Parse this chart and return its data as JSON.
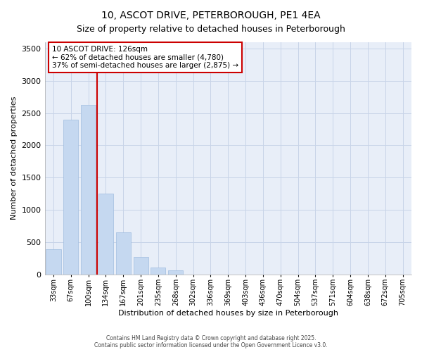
{
  "title1": "10, ASCOT DRIVE, PETERBOROUGH, PE1 4EA",
  "title2": "Size of property relative to detached houses in Peterborough",
  "xlabel": "Distribution of detached houses by size in Peterborough",
  "ylabel": "Number of detached properties",
  "categories": [
    "33sqm",
    "67sqm",
    "100sqm",
    "134sqm",
    "167sqm",
    "201sqm",
    "235sqm",
    "268sqm",
    "302sqm",
    "336sqm",
    "369sqm",
    "403sqm",
    "436sqm",
    "470sqm",
    "504sqm",
    "537sqm",
    "571sqm",
    "604sqm",
    "638sqm",
    "672sqm",
    "705sqm"
  ],
  "values": [
    390,
    2400,
    2630,
    1250,
    650,
    270,
    105,
    55,
    0,
    0,
    0,
    0,
    0,
    0,
    0,
    0,
    0,
    0,
    0,
    0,
    0
  ],
  "bar_color": "#c5d8f0",
  "bar_edge_color": "#a0bde0",
  "vline_position": 2.5,
  "vline_color": "#cc0000",
  "ylim_max": 3600,
  "yticks": [
    0,
    500,
    1000,
    1500,
    2000,
    2500,
    3000,
    3500
  ],
  "annotation_text": "10 ASCOT DRIVE: 126sqm\n← 62% of detached houses are smaller (4,780)\n37% of semi-detached houses are larger (2,875) →",
  "annotation_box_facecolor": "#ffffff",
  "annotation_box_edgecolor": "#cc0000",
  "footer": "Contains HM Land Registry data © Crown copyright and database right 2025.\nContains public sector information licensed under the Open Government Licence v3.0.",
  "bg_color": "#ffffff",
  "plot_bg_color": "#e8eef8",
  "grid_color": "#c8d4e8",
  "title_fontsize": 10,
  "subtitle_fontsize": 9
}
